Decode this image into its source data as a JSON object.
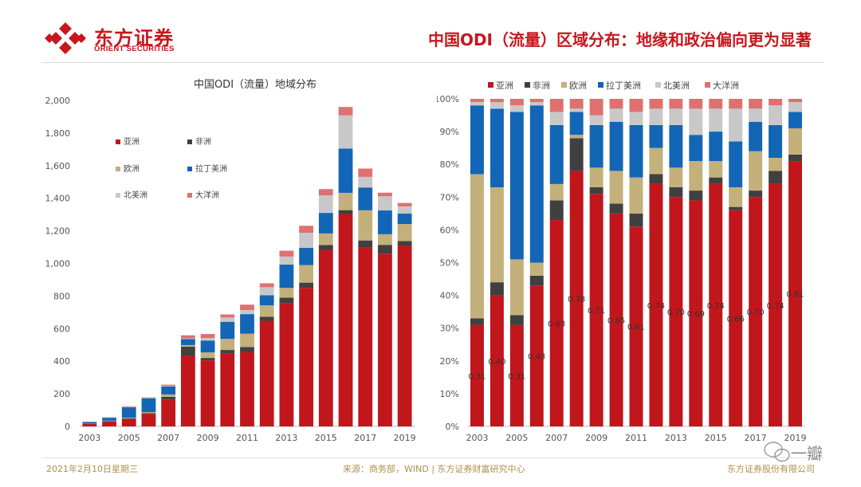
{
  "header": {
    "logo_cn": "东方证券",
    "logo_en": "ORIENT SECURITIES",
    "title": "中国ODI（流量）区域分布：地缘和政治偏向更为显著"
  },
  "footer": {
    "date": "2021年2月10日星期三",
    "source": "来源：商务部，WIND | 东方证券财富研究中心",
    "company": "东方证券股份有限公司"
  },
  "watermark": {
    "text": "一瓣"
  },
  "colors": {
    "asia": "#c0161c",
    "africa": "#404040",
    "europe": "#c4b07b",
    "latam": "#1266b5",
    "namerica": "#c8c8c8",
    "oceania": "#e07070",
    "brand": "#c8161d"
  },
  "chart_data": [
    {
      "type": "bar",
      "stacked": true,
      "title": "中国ODI（流量）地域分布",
      "x": [
        2003,
        2004,
        2005,
        2006,
        2007,
        2008,
        2009,
        2010,
        2011,
        2012,
        2013,
        2014,
        2015,
        2016,
        2017,
        2018,
        2019
      ],
      "x_tick_labels": [
        "2003",
        "2005",
        "2007",
        "2009",
        "2011",
        "2013",
        "2015",
        "2017",
        "2019"
      ],
      "ylim": [
        0,
        2000
      ],
      "y_ticks": [
        0,
        200,
        400,
        600,
        800,
        1000,
        1200,
        1400,
        1600,
        1800,
        2000
      ],
      "y_tick_labels": [
        "0",
        "200",
        "400",
        "600",
        "800",
        "1,000",
        "1,200",
        "1,400",
        "1,600",
        "1,800",
        "2,000"
      ],
      "legend_position": "inside-top-left",
      "series": [
        {
          "name": "亚洲",
          "color_key": "asia",
          "values": [
            15,
            30,
            45,
            77,
            165,
            435,
            405,
            448,
            455,
            648,
            756,
            850,
            1083,
            1303,
            1100,
            1060,
            1110
          ]
        },
        {
          "name": "非洲",
          "color_key": "africa",
          "values": [
            1,
            3,
            4,
            5,
            16,
            55,
            15,
            21,
            32,
            25,
            34,
            32,
            30,
            24,
            41,
            54,
            27
          ]
        },
        {
          "name": "欧洲",
          "color_key": "europe",
          "values": [
            1,
            2,
            4,
            6,
            15,
            9,
            34,
            68,
            82,
            70,
            60,
            108,
            71,
            106,
            185,
            65,
            105
          ]
        },
        {
          "name": "拉丁美洲",
          "color_key": "latam",
          "values": [
            10,
            18,
            65,
            85,
            49,
            37,
            73,
            105,
            120,
            62,
            143,
            106,
            126,
            272,
            140,
            146,
            64
          ]
        },
        {
          "name": "北美洲",
          "color_key": "namerica",
          "values": [
            1,
            2,
            3,
            3,
            3,
            4,
            15,
            26,
            25,
            49,
            49,
            92,
            107,
            203,
            65,
            87,
            44
          ]
        },
        {
          "name": "大洋洲",
          "color_key": "oceania",
          "values": [
            1,
            2,
            3,
            2,
            8,
            19,
            25,
            19,
            33,
            24,
            36,
            43,
            39,
            52,
            51,
            22,
            21
          ]
        }
      ]
    },
    {
      "type": "bar",
      "stacked": true,
      "percent": true,
      "x": [
        2003,
        2004,
        2005,
        2006,
        2007,
        2008,
        2009,
        2010,
        2011,
        2012,
        2013,
        2014,
        2015,
        2016,
        2017,
        2018,
        2019
      ],
      "x_tick_labels": [
        "2003",
        "2005",
        "2007",
        "2009",
        "2011",
        "2013",
        "2015",
        "2017",
        "2019"
      ],
      "ylim": [
        0,
        100
      ],
      "y_tick_labels": [
        "0%",
        "10%",
        "20%",
        "30%",
        "40%",
        "50%",
        "60%",
        "70%",
        "80%",
        "90%",
        "100%"
      ],
      "legend_position": "top",
      "series": [
        {
          "name": "亚洲",
          "color_key": "asia",
          "values": [
            31,
            40,
            31,
            43,
            63,
            78,
            71,
            65,
            61,
            74,
            70,
            69,
            74,
            66,
            70,
            74,
            81
          ]
        },
        {
          "name": "非洲",
          "color_key": "africa",
          "values": [
            2,
            4,
            3,
            3,
            6,
            10,
            2,
            3,
            4,
            3,
            3,
            3,
            2,
            1,
            2,
            4,
            2
          ]
        },
        {
          "name": "欧洲",
          "color_key": "europe",
          "values": [
            44,
            29,
            17,
            4,
            5,
            1,
            6,
            10,
            11,
            8,
            6,
            9,
            5,
            6,
            12,
            4,
            8
          ]
        },
        {
          "name": "拉丁美洲",
          "color_key": "latam",
          "values": [
            21,
            24,
            45,
            48,
            18,
            7,
            13,
            15,
            16,
            7,
            13,
            8,
            9,
            14,
            9,
            10,
            5
          ]
        },
        {
          "name": "北美洲",
          "color_key": "namerica",
          "values": [
            1,
            2,
            2,
            1,
            4,
            1,
            3,
            4,
            4,
            5,
            5,
            8,
            7,
            10,
            4,
            6,
            3
          ]
        },
        {
          "name": "大洋洲",
          "color_key": "oceania",
          "values": [
            1,
            1,
            2,
            1,
            4,
            3,
            5,
            3,
            4,
            3,
            3,
            3,
            3,
            3,
            3,
            2,
            1
          ]
        }
      ],
      "asia_labels": [
        "0.31",
        "0.40",
        "0.31",
        "0.43",
        "0.63",
        "0.78",
        "0.71",
        "0.65",
        "0.61",
        "0.74",
        "0.70",
        "0.69",
        "0.74",
        "0.66",
        "0.70",
        "0.74",
        "0.81"
      ]
    }
  ]
}
